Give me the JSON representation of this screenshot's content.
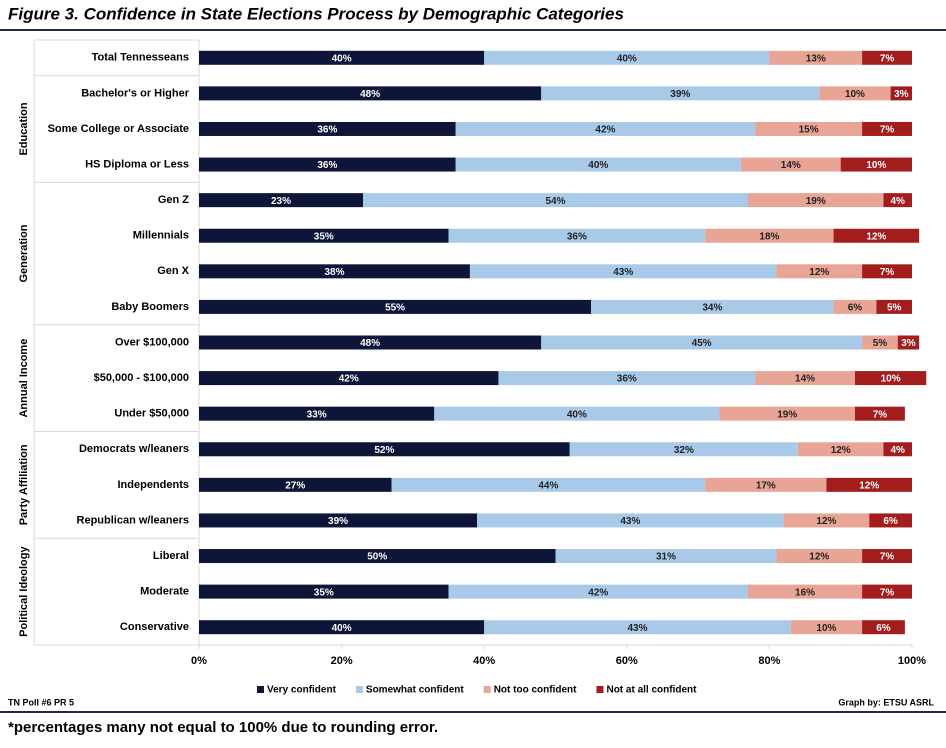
{
  "chart_data": {
    "type": "stacked_bar_horizontal",
    "title": "Figure 3. Confidence in State Elections Process by Demographic Categories",
    "categories": [
      "Total Tennesseans",
      "Bachelor's or Higher",
      "Some College or Associate",
      "HS Diploma or Less",
      "Gen Z",
      "Millennials",
      "Gen X",
      "Baby Boomers",
      "Over $100,000",
      "$50,000 - $100,000",
      "Under $50,000",
      "Democrats w/leaners",
      "Independents",
      "Republican w/leaners",
      "Liberal",
      "Moderate",
      "Conservative"
    ],
    "category_groups": [
      null,
      "Education",
      null,
      null,
      "Generation",
      null,
      null,
      null,
      "Annual Income",
      null,
      null,
      "Party Affiliation",
      null,
      null,
      "Political Ideology",
      null,
      null
    ],
    "series": [
      {
        "name": "Very confident",
        "color": "#0d1538",
        "values": [
          40,
          48,
          36,
          36,
          23,
          35,
          38,
          55,
          48,
          42,
          33,
          52,
          27,
          39,
          50,
          35,
          40
        ],
        "value_labels": [
          "40%",
          "48%",
          "36%",
          "36%",
          "23%",
          "35%",
          "38%",
          "55%",
          "48%",
          "42%",
          "33%",
          "52%",
          "27%",
          "39%",
          "50%",
          "35%",
          "40%"
        ]
      },
      {
        "name": "Somewhat confident",
        "color": "#a9c9e8",
        "values": [
          40,
          39,
          42,
          40,
          54,
          36,
          43,
          34,
          45,
          36,
          40,
          32,
          44,
          43,
          31,
          42,
          43
        ],
        "value_labels": [
          "40%",
          "39%",
          "42%",
          "40%",
          "54%",
          "36%",
          "43%",
          "34%",
          "45%",
          "36%",
          "40%",
          "32%",
          "44%",
          "43%",
          "31%",
          "42%",
          "43%"
        ]
      },
      {
        "name": "Not too confident",
        "color": "#e8a494",
        "values": [
          13,
          10,
          15,
          14,
          19,
          18,
          12,
          6,
          5,
          14,
          19,
          12,
          17,
          12,
          12,
          16,
          10
        ],
        "value_labels": [
          "13%",
          "10%",
          "15%",
          "14%",
          "19%",
          "18%",
          "12%",
          "6%",
          "5%",
          "14%",
          "19%",
          "12%",
          "17%",
          "12%",
          "12%",
          "16%",
          "10%"
        ]
      },
      {
        "name": "Not at all confident",
        "color": "#a31d1d",
        "values": [
          7,
          3,
          7,
          10,
          4,
          12,
          7,
          5,
          3,
          10,
          7,
          4,
          12,
          6,
          7,
          7,
          6
        ],
        "value_labels": [
          "7%",
          "3%",
          "7%",
          "10%",
          "4%",
          "12%",
          "7%",
          "5%",
          "3%",
          "10%",
          "7%",
          "4%",
          "12%",
          "6%",
          "7%",
          "7%",
          "6%"
        ]
      }
    ],
    "xlim": [
      0,
      100
    ],
    "xticks": [
      {
        "value": 0,
        "label": "0%"
      },
      {
        "value": 20,
        "label": "20%"
      },
      {
        "value": 40,
        "label": "40%"
      },
      {
        "value": 60,
        "label": "60%"
      },
      {
        "value": 80,
        "label": "80%"
      },
      {
        "value": 100,
        "label": "100%"
      }
    ],
    "legend_position": "bottom",
    "source_left": "TN Poll #6 PR 5",
    "source_right": "Graph by: ETSU ASRL",
    "footnote": "*percentages many not equal to 100% due to rounding error."
  }
}
